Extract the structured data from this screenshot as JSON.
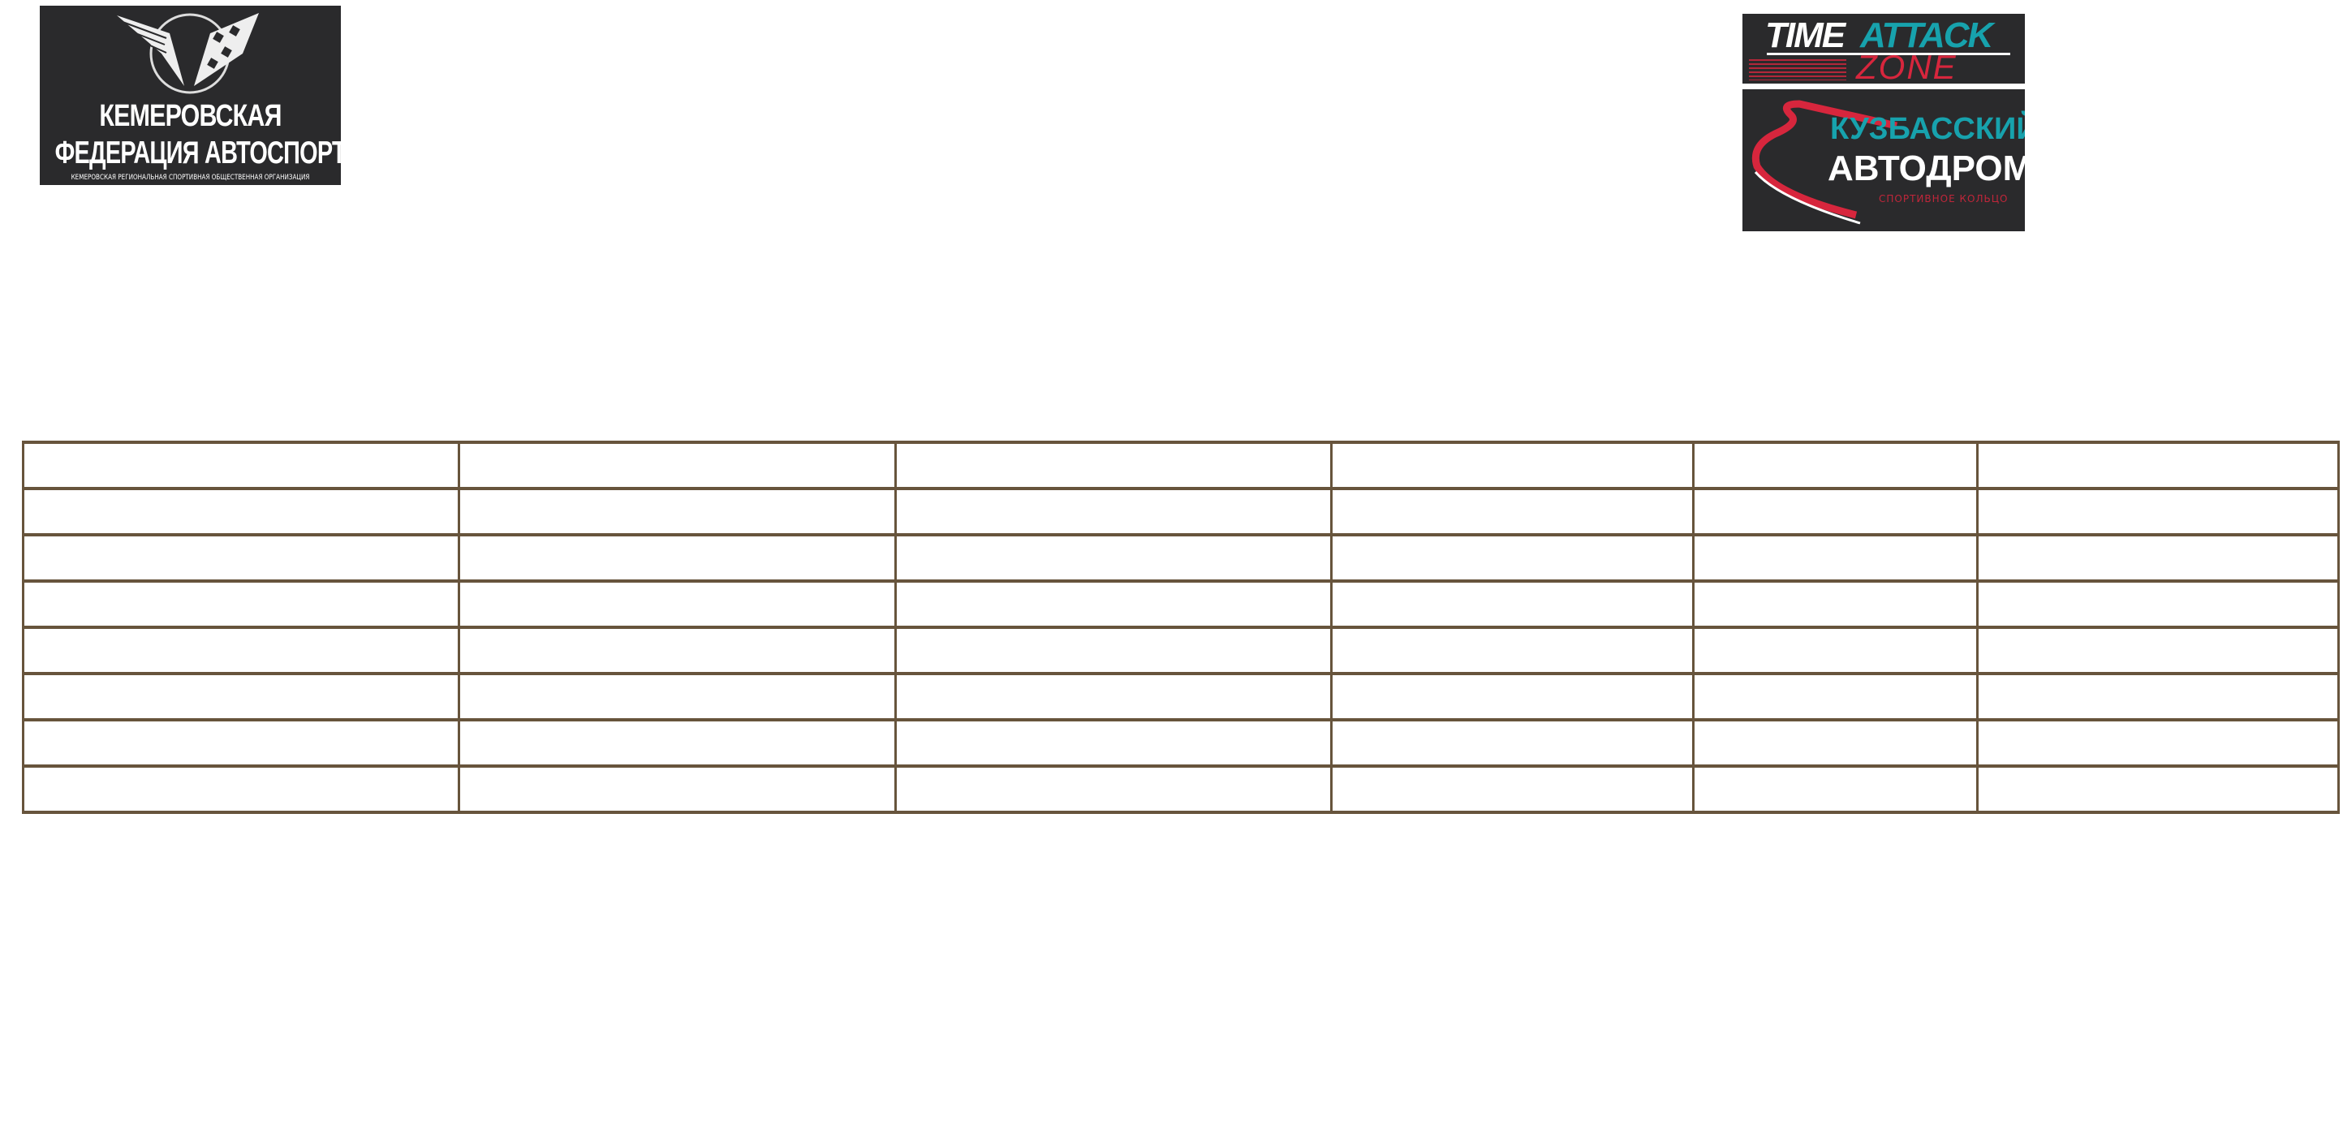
{
  "logos": {
    "federation": {
      "line1": "КЕМЕРОВСКАЯ",
      "line2": "ФЕДЕРАЦИЯ АВТОСПОРТА",
      "line3": "КЕМЕРОВСКАЯ РЕГИОНАЛЬНАЯ СПОРТИВНАЯ ОБЩЕСТВЕННАЯ ОРГАНИЗАЦИЯ"
    },
    "time_attack": {
      "word1": "TIME",
      "word2": "ATTACK",
      "word3": "ZONE"
    },
    "kuzbass": {
      "line1": "КУЗБАССКИЙ",
      "line2": "АВТОДРОМ",
      "line3": "СПОРТИВНОЕ КОЛЬЦО"
    }
  },
  "colors": {
    "table_border": "#67543c",
    "logo_bg": "#2a2a2c",
    "teal": "#17a2ad",
    "red": "#d7263d"
  },
  "table": {
    "columns": 6,
    "rows": [
      [
        "",
        "",
        "",
        "",
        "",
        ""
      ],
      [
        "",
        "",
        "",
        "",
        "",
        ""
      ],
      [
        "",
        "",
        "",
        "",
        "",
        ""
      ],
      [
        "",
        "",
        "",
        "",
        "",
        ""
      ],
      [
        "",
        "",
        "",
        "",
        "",
        ""
      ],
      [
        "",
        "",
        "",
        "",
        "",
        ""
      ],
      [
        "",
        "",
        "",
        "",
        "",
        ""
      ],
      [
        "",
        "",
        "",
        "",
        "",
        ""
      ]
    ]
  }
}
